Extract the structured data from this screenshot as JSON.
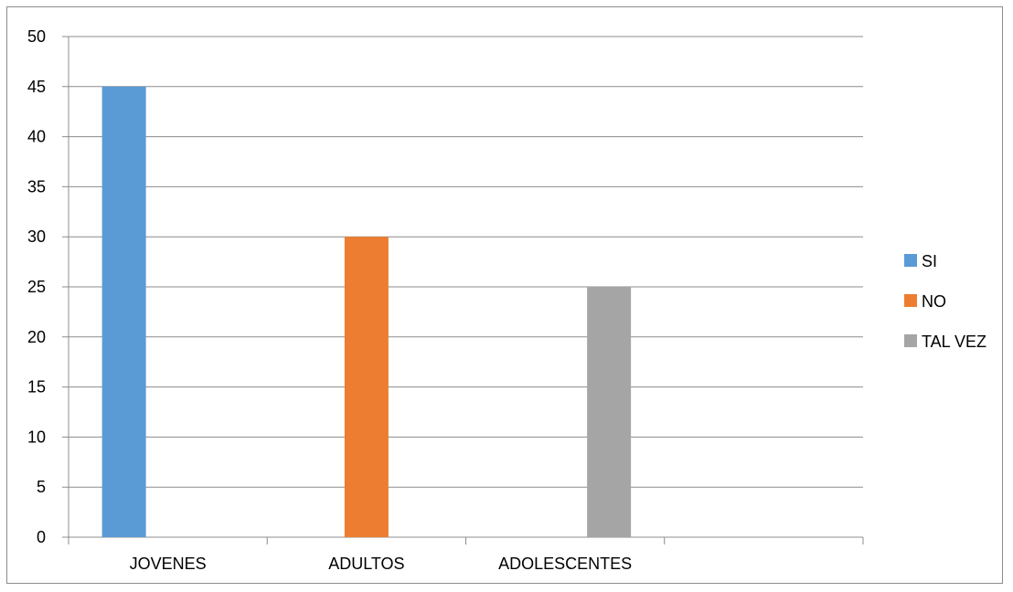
{
  "chart_data": {
    "type": "bar",
    "categories": [
      "JOVENES",
      "ADULTOS",
      "ADOLESCENTES",
      ""
    ],
    "series": [
      {
        "name": "SI",
        "color": "#5b9bd5",
        "values": [
          45,
          null,
          null,
          null
        ]
      },
      {
        "name": "NO",
        "color": "#ed7d31",
        "values": [
          null,
          30,
          null,
          null
        ]
      },
      {
        "name": "TAL VEZ",
        "color": "#a5a5a5",
        "values": [
          null,
          null,
          25,
          null
        ]
      }
    ],
    "yticks": [
      "0",
      "5",
      "10",
      "15",
      "20",
      "25",
      "30",
      "35",
      "40",
      "45",
      "50"
    ],
    "ylim": [
      0,
      50
    ],
    "grid": true,
    "legend_position": "right"
  }
}
